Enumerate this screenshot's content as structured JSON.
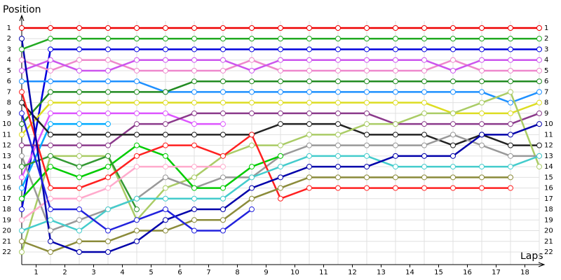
{
  "chart_data": {
    "type": "lap-chart",
    "y_label": "Position",
    "x_label": "Laps",
    "x": [
      0,
      1,
      2,
      3,
      4,
      5,
      6,
      7,
      8,
      9,
      10,
      11,
      12,
      13,
      14,
      15,
      16,
      17,
      18
    ],
    "xlim": [
      0,
      18
    ],
    "xticks": [
      {
        "value": 0.5,
        "label": "1"
      },
      {
        "value": 1.5,
        "label": "2"
      },
      {
        "value": 2.5,
        "label": "3"
      },
      {
        "value": 3.5,
        "label": "4"
      },
      {
        "value": 4.5,
        "label": "5"
      },
      {
        "value": 5.5,
        "label": "6"
      },
      {
        "value": 6.5,
        "label": "7"
      },
      {
        "value": 7.5,
        "label": "8"
      },
      {
        "value": 8.5,
        "label": "9"
      },
      {
        "value": 9.5,
        "label": "10"
      },
      {
        "value": 10.5,
        "label": "11"
      },
      {
        "value": 11.5,
        "label": "12"
      },
      {
        "value": 12.5,
        "label": "13"
      },
      {
        "value": 13.5,
        "label": "14"
      },
      {
        "value": 14.5,
        "label": "15"
      },
      {
        "value": 15.5,
        "label": "16"
      },
      {
        "value": 16.5,
        "label": "17"
      },
      {
        "value": 17.5,
        "label": "18"
      }
    ],
    "ylim": [
      1,
      22
    ],
    "y_inverted": true,
    "yticks": [
      1,
      2,
      3,
      4,
      5,
      6,
      7,
      8,
      9,
      10,
      11,
      12,
      13,
      14,
      15,
      16,
      17,
      18,
      19,
      20,
      21,
      22
    ],
    "grid": true,
    "series": [
      {
        "color": "#ee0000",
        "values": [
          1,
          1,
          1,
          1,
          1,
          1,
          1,
          1,
          1,
          1,
          1,
          1,
          1,
          1,
          1,
          1,
          1,
          1,
          1
        ]
      },
      {
        "color": "#22aa22",
        "values": [
          3,
          2,
          2,
          2,
          2,
          2,
          2,
          2,
          2,
          2,
          2,
          2,
          2,
          2,
          2,
          2,
          2,
          2,
          2
        ]
      },
      {
        "color": "#0000dd",
        "values": [
          18,
          3,
          3,
          3,
          3,
          3,
          3,
          3,
          3,
          3,
          3,
          3,
          3,
          3,
          3,
          3,
          3,
          3,
          3
        ]
      },
      {
        "color": "#ee88cc",
        "values": [
          4,
          5,
          4,
          4,
          5,
          5,
          5,
          5,
          4,
          5,
          5,
          5,
          5,
          5,
          5,
          4,
          5,
          5,
          5
        ]
      },
      {
        "color": "#cc55ee",
        "values": [
          5,
          4,
          5,
          5,
          4,
          4,
          4,
          4,
          5,
          4,
          4,
          4,
          4,
          4,
          4,
          5,
          4,
          4,
          4
        ]
      },
      {
        "color": "#1e90ff",
        "values": [
          6,
          6,
          6,
          6,
          6,
          7,
          7,
          7,
          7,
          7,
          7,
          7,
          7,
          7,
          7,
          7,
          7,
          8,
          7
        ]
      },
      {
        "color": "#228b22",
        "values": [
          10,
          7,
          7,
          7,
          7,
          7,
          6,
          6,
          6,
          6,
          6,
          6,
          6,
          6,
          6,
          6,
          6,
          6,
          6
        ]
      },
      {
        "color": "#dddd22",
        "values": [
          11,
          8,
          8,
          8,
          8,
          8,
          8,
          8,
          8,
          8,
          8,
          8,
          8,
          8,
          8,
          9,
          9,
          9,
          8
        ]
      },
      {
        "color": "#dd55ff",
        "values": [
          15,
          9,
          9,
          9,
          9,
          9,
          10,
          10,
          null,
          null,
          null,
          null,
          null,
          null,
          null,
          null,
          null,
          null,
          null
        ]
      },
      {
        "color": "#8b3a8b",
        "values": [
          12,
          12,
          12,
          12,
          10,
          10,
          9,
          9,
          9,
          9,
          9,
          9,
          9,
          10,
          10,
          10,
          10,
          10,
          9
        ]
      },
      {
        "color": "#00aaff",
        "values": [
          16,
          10,
          10,
          10,
          null,
          null,
          null,
          null,
          null,
          null,
          null,
          null,
          null,
          null,
          null,
          null,
          null,
          null,
          null
        ]
      },
      {
        "color": "#222222",
        "values": [
          8,
          11,
          11,
          11,
          11,
          11,
          11,
          11,
          11,
          10,
          10,
          10,
          11,
          11,
          11,
          12,
          11,
          12,
          12
        ]
      },
      {
        "color": "#aacc66",
        "values": [
          22,
          13,
          13,
          13,
          19,
          16,
          15,
          13,
          12,
          12,
          11,
          11,
          10,
          10,
          9,
          9,
          8,
          7,
          14
        ]
      },
      {
        "color": "#999999",
        "values": [
          13,
          20,
          19,
          18,
          17,
          15,
          16,
          15,
          15,
          13,
          12,
          12,
          12,
          12,
          12,
          11,
          12,
          13,
          13
        ]
      },
      {
        "color": "#00cc00",
        "values": [
          17,
          14,
          15,
          14,
          12,
          13,
          16,
          16,
          14,
          13,
          null,
          null,
          null,
          null,
          null,
          null,
          null,
          null,
          null
        ]
      },
      {
        "color": "#339933",
        "values": [
          14,
          13,
          14,
          13,
          18,
          null,
          null,
          null,
          null,
          null,
          null,
          null,
          null,
          null,
          null,
          null,
          null,
          null,
          null
        ]
      },
      {
        "color": "#ff2020",
        "values": [
          7,
          16,
          16,
          15,
          13,
          12,
          12,
          13,
          11,
          17,
          16,
          16,
          16,
          16,
          16,
          16,
          16,
          16,
          null
        ]
      },
      {
        "color": "#ffaacc",
        "values": [
          19,
          17,
          17,
          16,
          14,
          14,
          14,
          14,
          null,
          null,
          null,
          null,
          null,
          null,
          null,
          null,
          null,
          null,
          null
        ]
      },
      {
        "color": "#44cccc",
        "values": [
          20,
          19,
          20,
          18,
          17,
          17,
          17,
          17,
          15,
          14,
          13,
          13,
          13,
          14,
          14,
          14,
          14,
          14,
          13
        ]
      },
      {
        "color": "#8b8b3a",
        "values": [
          21,
          22,
          21,
          21,
          20,
          20,
          19,
          19,
          17,
          16,
          15,
          15,
          15,
          15,
          15,
          15,
          15,
          15,
          null
        ]
      },
      {
        "color": "#0000aa",
        "values": [
          2,
          21,
          22,
          22,
          21,
          19,
          18,
          18,
          16,
          15,
          14,
          14,
          14,
          13,
          13,
          13,
          11,
          11,
          10
        ]
      },
      {
        "color": "#2222dd",
        "values": [
          9,
          18,
          18,
          20,
          19,
          18,
          20,
          20,
          18,
          null,
          null,
          null,
          null,
          null,
          null,
          null,
          null,
          null,
          null
        ]
      }
    ]
  }
}
